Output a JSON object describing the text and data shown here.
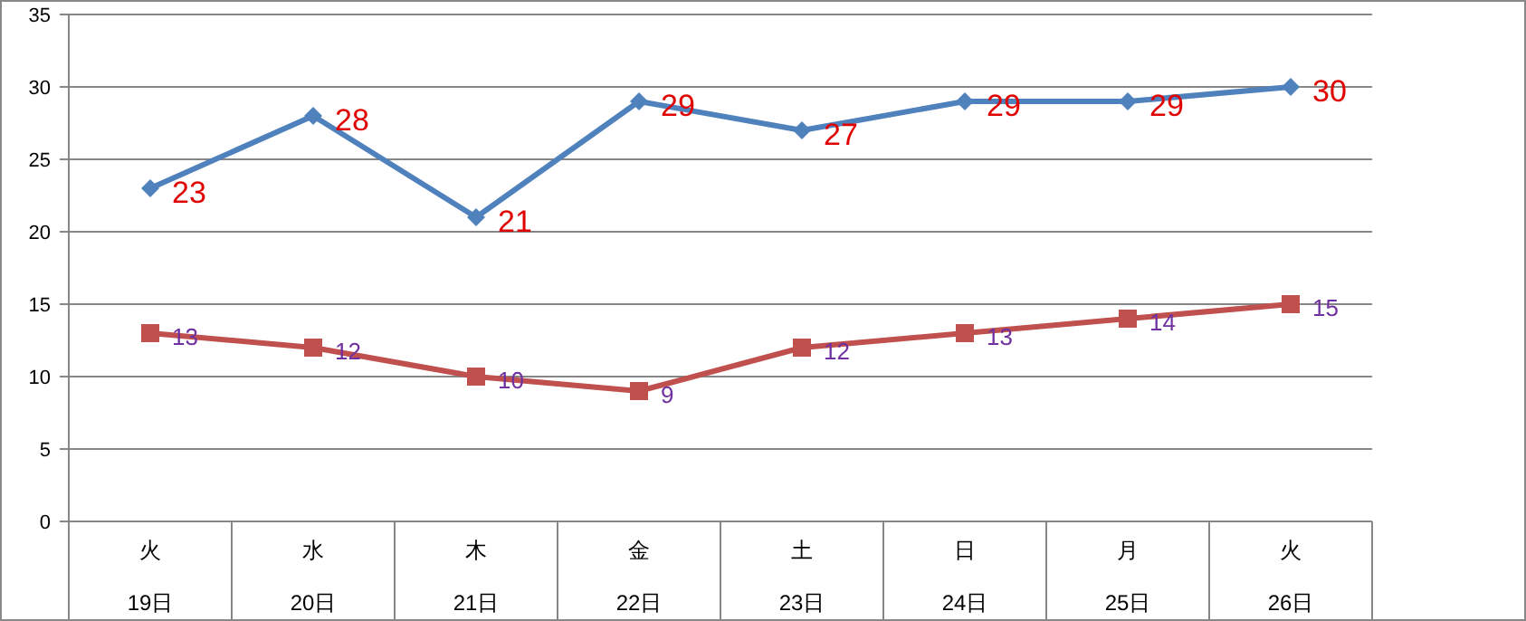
{
  "chart_data": {
    "type": "line",
    "categories": [
      "火\n19日",
      "水\n20日",
      "木\n21日",
      "金\n22日",
      "土\n23日",
      "日\n24日",
      "月\n25日",
      "火\n26日"
    ],
    "series": [
      {
        "color": "#4f81bd",
        "marker": "diamond",
        "values": [
          23,
          28,
          21,
          29,
          27,
          29,
          29,
          30
        ]
      },
      {
        "color": "#c0504d",
        "marker": "square",
        "values": [
          13,
          12,
          10,
          9,
          12,
          13,
          14,
          15
        ]
      }
    ],
    "ylim": [
      0,
      35
    ],
    "yticks": [
      0,
      5,
      10,
      15,
      20,
      25,
      30,
      35
    ],
    "grid": "y",
    "data_labels": true,
    "line_style": "solid"
  }
}
